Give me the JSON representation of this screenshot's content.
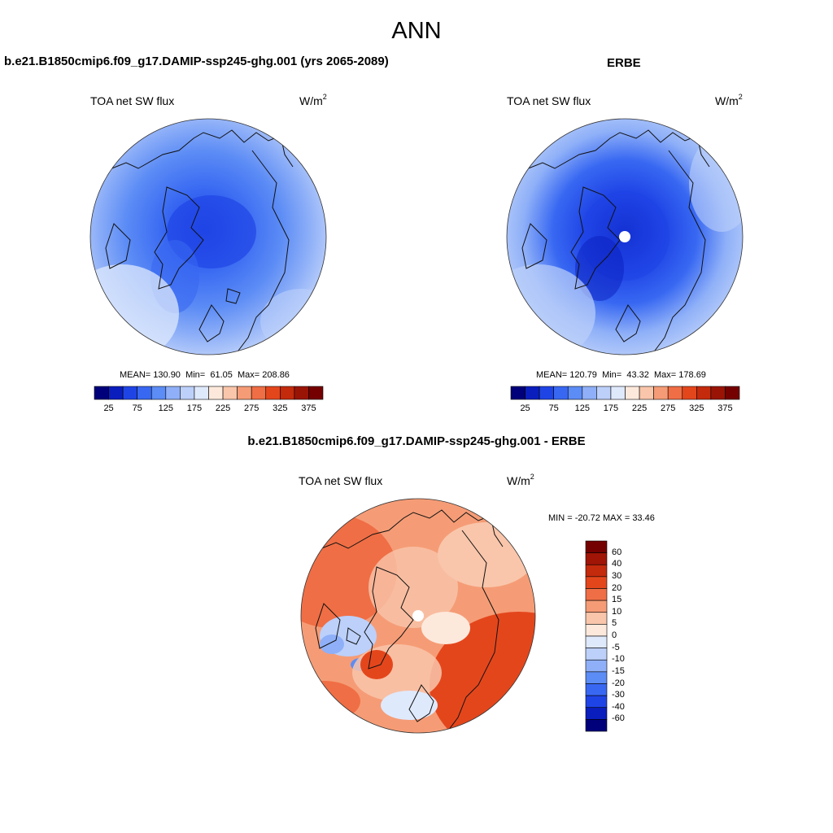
{
  "figure_title": "ANN",
  "panels": [
    {
      "case_title": "b.e21.B1850cmip6.f09_g17.DAMIP-ssp245-ghg.001 (yrs 2065-2089)",
      "variable": "TOA net SW flux",
      "units_base": "W/m",
      "units_exp": "2",
      "stats_mean_label": "MEAN=",
      "stats_mean": "130.90",
      "stats_min_label": "Min=",
      "stats_min": "61.05",
      "stats_max_label": "Max=",
      "stats_max": "208.86"
    },
    {
      "case_title": "ERBE",
      "variable": "TOA net SW flux",
      "units_base": "W/m",
      "units_exp": "2",
      "stats_mean_label": "MEAN=",
      "stats_mean": "120.79",
      "stats_min_label": "Min=",
      "stats_min": "43.32",
      "stats_max_label": "Max=",
      "stats_max": "178.69"
    },
    {
      "case_title": "b.e21.B1850cmip6.f09_g17.DAMIP-ssp245-ghg.001 - ERBE",
      "variable": "TOA net SW flux",
      "units_base": "W/m",
      "units_exp": "2",
      "minmax_text": "MIN = -20.72 MAX =  33.46"
    }
  ],
  "colorbar_abs": {
    "tick_labels": [
      "25",
      "75",
      "125",
      "175",
      "225",
      "275",
      "325",
      "375"
    ],
    "colors": [
      "#00007a",
      "#0a1ebe",
      "#1f44e6",
      "#3868f2",
      "#5c8cf5",
      "#8fb0f8",
      "#bcd0fa",
      "#dfe9fc",
      "#fde9dc",
      "#f9c6ab",
      "#f59c76",
      "#f06e45",
      "#e4461c",
      "#c42a0c",
      "#9a1405",
      "#750000"
    ]
  },
  "colorbar_diff": {
    "tick_labels": [
      "60",
      "40",
      "30",
      "20",
      "15",
      "10",
      "5",
      "0",
      "-5",
      "-10",
      "-15",
      "-20",
      "-30",
      "-40",
      "-60"
    ],
    "colors": [
      "#750000",
      "#a01506",
      "#c42a0c",
      "#e4461c",
      "#f06e45",
      "#f59c76",
      "#f9c6ab",
      "#fde9dc",
      "#dfe9fc",
      "#bcd0fa",
      "#8fb0f8",
      "#5c8cf5",
      "#3868f2",
      "#1f44e6",
      "#0a1ebe",
      "#00007a"
    ]
  },
  "chart_data": [
    {
      "type": "heatmap",
      "title": "b.e21.B1850cmip6.f09_g17.DAMIP-ssp245-ghg.001 (yrs 2065-2089)",
      "variable": "TOA net SW flux",
      "units": "W/m2",
      "projection": "polar stereographic, north pole",
      "mean": 130.9,
      "min": 61.05,
      "max": 208.86,
      "levels": [
        25,
        50,
        75,
        100,
        125,
        150,
        175,
        200,
        225,
        250,
        275,
        300,
        325,
        350,
        375
      ]
    },
    {
      "type": "heatmap",
      "title": "ERBE",
      "variable": "TOA net SW flux",
      "units": "W/m2",
      "projection": "polar stereographic, north pole",
      "mean": 120.79,
      "min": 43.32,
      "max": 178.69,
      "levels": [
        25,
        50,
        75,
        100,
        125,
        150,
        175,
        200,
        225,
        250,
        275,
        300,
        325,
        350,
        375
      ]
    },
    {
      "type": "heatmap",
      "title": "b.e21.B1850cmip6.f09_g17.DAMIP-ssp245-ghg.001 - ERBE",
      "variable": "TOA net SW flux",
      "units": "W/m2",
      "projection": "polar stereographic, north pole",
      "min": -20.72,
      "max": 33.46,
      "levels": [
        -60,
        -40,
        -30,
        -20,
        -15,
        -10,
        -5,
        0,
        5,
        10,
        15,
        20,
        30,
        40,
        60
      ]
    }
  ]
}
